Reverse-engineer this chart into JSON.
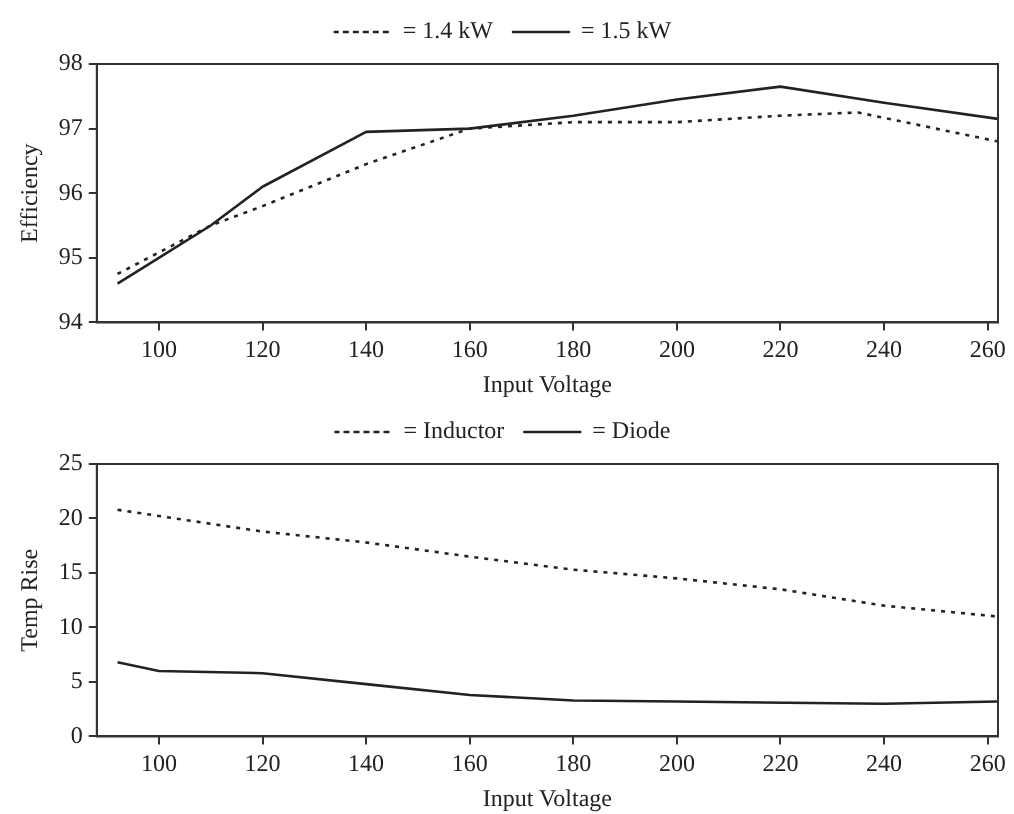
{
  "chart_data": [
    {
      "type": "line",
      "xlabel": "Input Voltage",
      "ylabel": "Efficiency",
      "xlim": [
        88,
        262
      ],
      "xticks": [
        100,
        120,
        140,
        160,
        180,
        200,
        220,
        240,
        260
      ],
      "ylim": [
        94,
        98
      ],
      "yticks": [
        94,
        95,
        96,
        97,
        98
      ],
      "grid": false,
      "legend": "top",
      "marker": "none",
      "series": [
        {
          "name": "= 1.4 kW",
          "color": "#222222",
          "line_style": "dotted",
          "x": [
            92,
            110,
            120,
            140,
            160,
            180,
            200,
            220,
            235,
            262
          ],
          "values": [
            94.75,
            95.5,
            95.8,
            96.45,
            97.0,
            97.1,
            97.1,
            97.2,
            97.25,
            96.8
          ]
        },
        {
          "name": "= 1.5 kW",
          "color": "#222222",
          "line_style": "solid",
          "x": [
            92,
            110,
            120,
            140,
            160,
            180,
            200,
            220,
            240,
            262
          ],
          "values": [
            94.6,
            95.5,
            96.1,
            96.95,
            97.0,
            97.2,
            97.45,
            97.65,
            97.4,
            97.15
          ]
        }
      ]
    },
    {
      "type": "line",
      "xlabel": "Input Voltage",
      "ylabel": "Temp Rise",
      "xlim": [
        88,
        262
      ],
      "xticks": [
        100,
        120,
        140,
        160,
        180,
        200,
        220,
        240,
        260
      ],
      "ylim": [
        0,
        25
      ],
      "yticks": [
        0,
        5,
        10,
        15,
        20,
        25
      ],
      "grid": false,
      "legend": "top",
      "marker": "none",
      "series": [
        {
          "name": "= Inductor",
          "color": "#222222",
          "line_style": "dotted",
          "x": [
            92,
            120,
            140,
            160,
            180,
            200,
            220,
            240,
            262
          ],
          "values": [
            20.8,
            18.8,
            17.8,
            16.5,
            15.3,
            14.5,
            13.5,
            12,
            11
          ]
        },
        {
          "name": "= Diode",
          "color": "#222222",
          "line_style": "solid",
          "x": [
            92,
            100,
            120,
            140,
            160,
            180,
            200,
            240,
            262
          ],
          "values": [
            6.8,
            6,
            5.8,
            4.8,
            3.8,
            3.3,
            3.2,
            3.0,
            3.2
          ]
        }
      ]
    }
  ]
}
